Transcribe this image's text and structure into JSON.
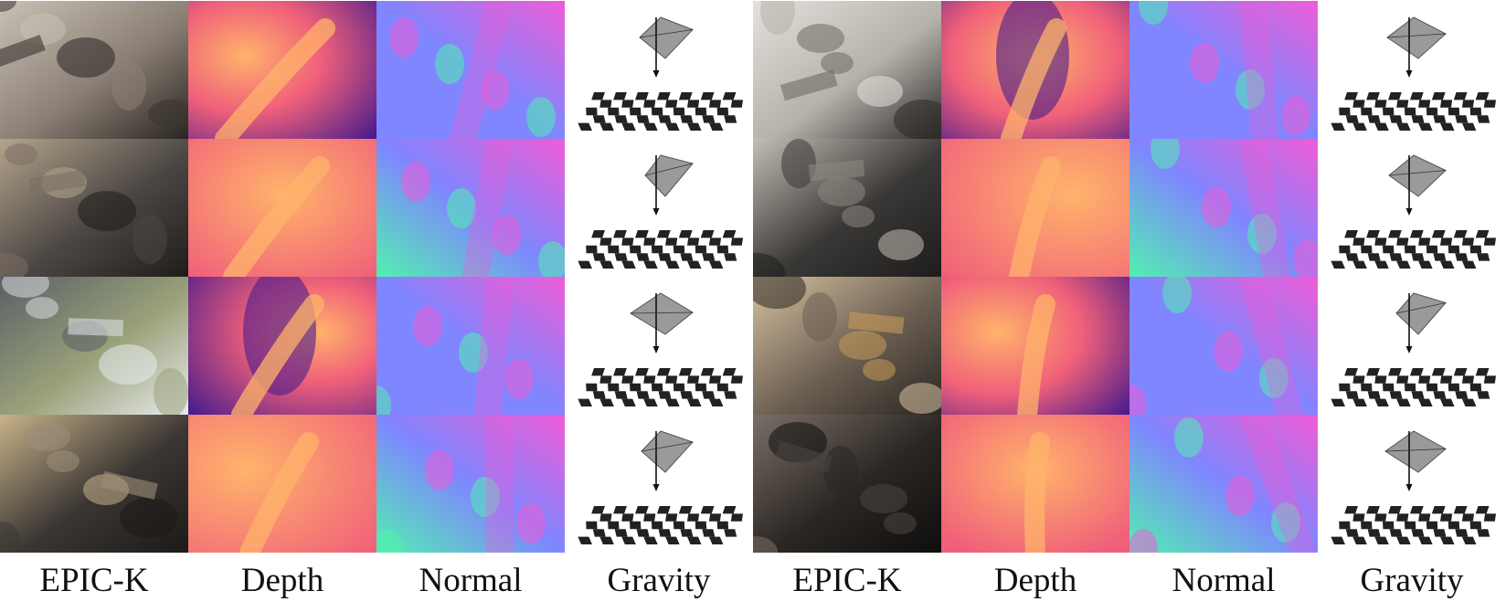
{
  "captions": [
    "EPIC-K",
    "Depth",
    "Normal",
    "Gravity",
    "EPIC-K",
    "Depth",
    "Normal",
    "Gravity"
  ],
  "rows": 4,
  "colors": {
    "depth_near": "#ffb36b",
    "depth_mid": "#f0607a",
    "depth_far": "#4a1c8c",
    "normal_blue": "#7f86ff",
    "normal_pink": "#ef5cd6",
    "normal_green": "#52f0b0",
    "gravity_plane": "#9a9a9a",
    "checker": "#222222"
  }
}
